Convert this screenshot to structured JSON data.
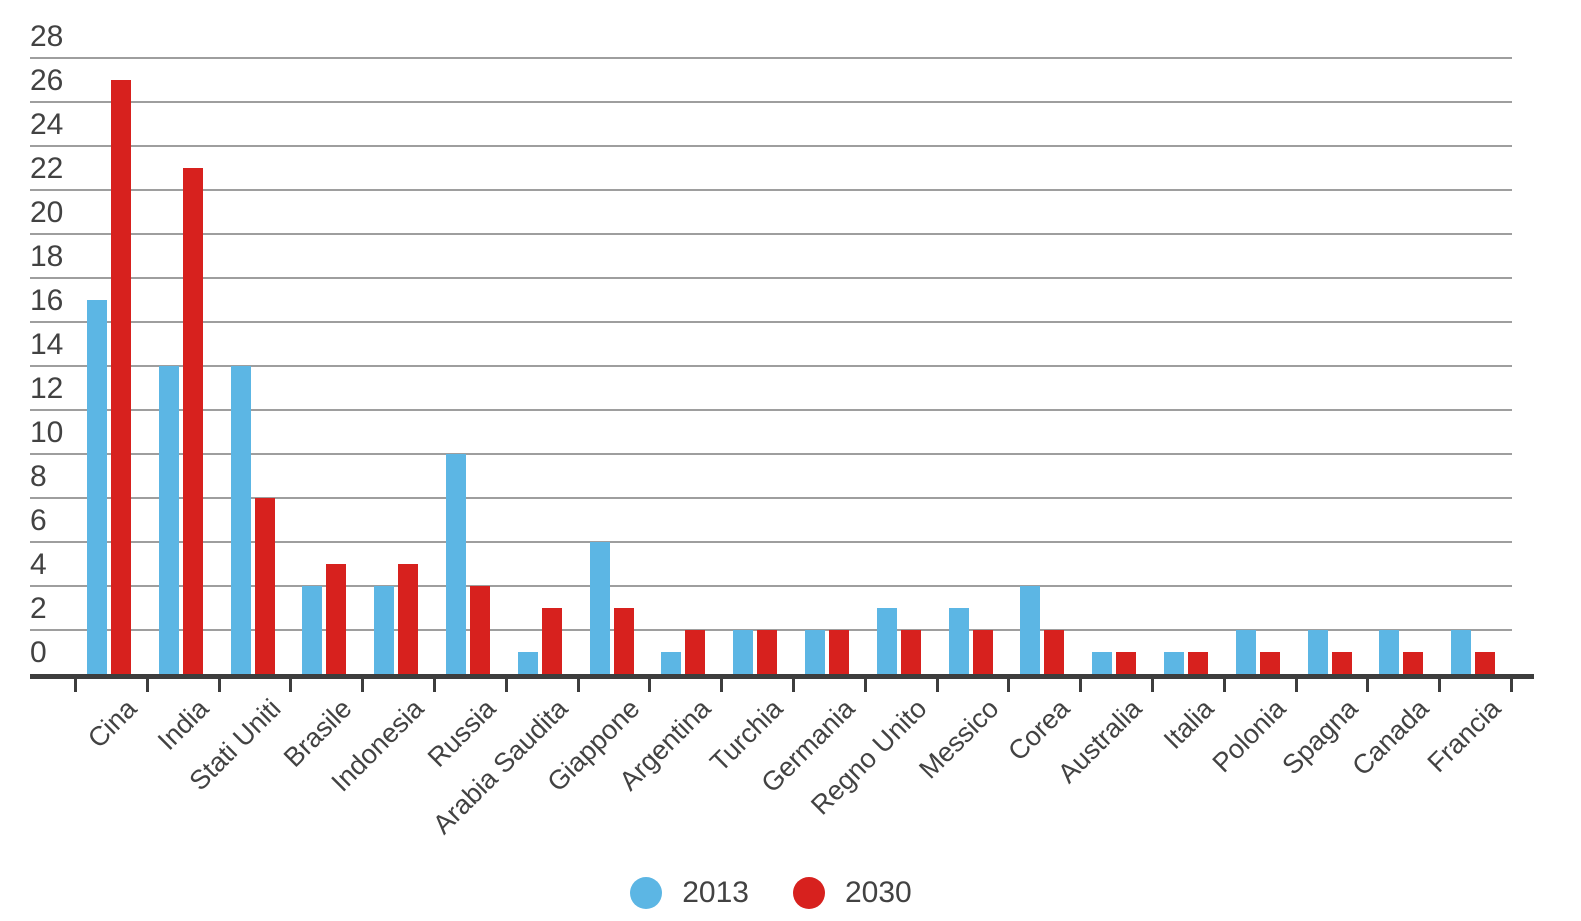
{
  "chart_data": {
    "type": "bar",
    "title": "",
    "xlabel": "",
    "ylabel": "",
    "categories": [
      "Cina",
      "India",
      "Stati Uniti",
      "Brasile",
      "Indonesia",
      "Russia",
      "Arabia Saudita",
      "Giappone",
      "Argentina",
      "Turchia",
      "Germania",
      "Regno Unito",
      "Messico",
      "Corea",
      "Australia",
      "Italia",
      "Polonia",
      "Spagna",
      "Canada",
      "Francia"
    ],
    "series": [
      {
        "name": "2013",
        "color": "#5cb6e4",
        "values": [
          17,
          14,
          14,
          4,
          4,
          10,
          1,
          6,
          1,
          2,
          2,
          3,
          3,
          4,
          1,
          1,
          2,
          2,
          2,
          2
        ]
      },
      {
        "name": "2030",
        "color": "#d7211e",
        "values": [
          27,
          23,
          8,
          5,
          5,
          4,
          3,
          3,
          2,
          2,
          2,
          2,
          2,
          2,
          1,
          1,
          1,
          1,
          1,
          1
        ]
      }
    ],
    "ylim": [
      0,
      28
    ],
    "ytick_step": 2,
    "ytick_labels": [
      "0",
      "2",
      "4",
      "6",
      "8",
      "10",
      "12",
      "14",
      "16",
      "18",
      "20",
      "22",
      "24",
      "26",
      "28"
    ],
    "grid": "horizontal",
    "legend_position": "bottom-center",
    "xlabel_rotation_deg": -45
  },
  "colors": {
    "background": "#ffffff",
    "grid": "#9e9e9e",
    "axis": "#3d3d3d",
    "text": "#424242"
  }
}
